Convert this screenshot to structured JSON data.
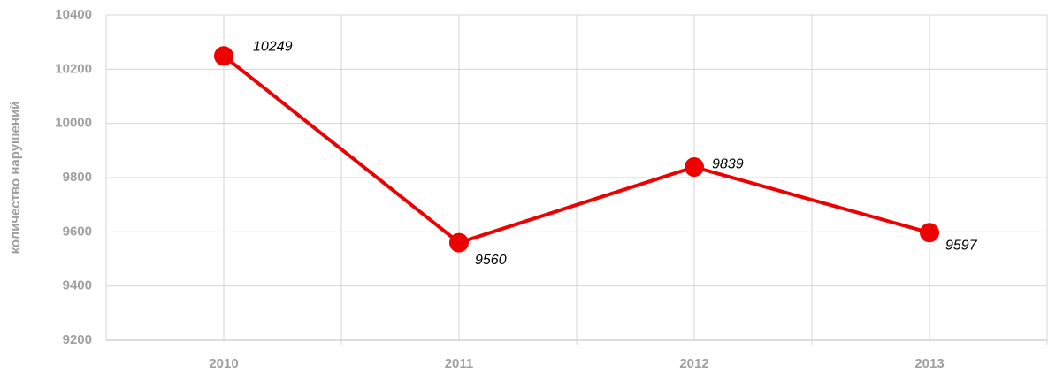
{
  "chart_data": {
    "type": "line",
    "y_label": "количество нарушений",
    "categories": [
      "2010",
      "2011",
      "2012",
      "2013"
    ],
    "series": [
      {
        "name": null,
        "color": "#ee0000",
        "values": [
          10249,
          9560,
          9839,
          9597
        ]
      }
    ],
    "ylim": [
      9200,
      10400
    ],
    "yticks": [
      9200,
      9400,
      9600,
      9800,
      10000,
      10200,
      10400
    ],
    "grid": true
  }
}
